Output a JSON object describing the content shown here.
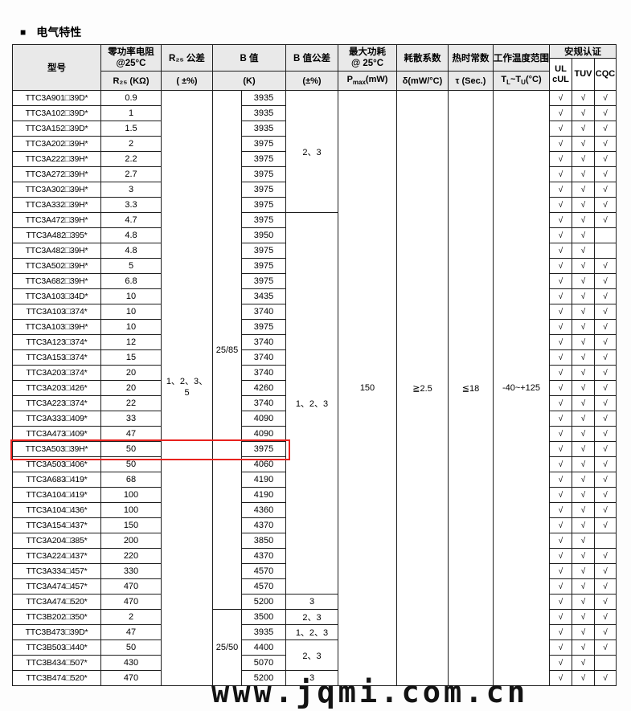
{
  "page": {
    "title_bullet": "■",
    "title": "电气特性",
    "watermark": "www.jqmi.com.cn"
  },
  "colors": {
    "header_bg": "#e9e9e9",
    "border": "#1d1d1d",
    "highlight_red": "#e8211d"
  },
  "table": {
    "header": {
      "model": "型号",
      "zero_power_resistance": "零功率电阻\n@25°C",
      "zero_power_unit": "R₂₅ (KΩ)",
      "r25_tolerance": "R₂₅ 公差",
      "r25_tolerance_unit": "( ±%)",
      "b_value": "B 值",
      "b_value_unit": "(K)",
      "b_tolerance": "B 值公差",
      "b_tolerance_unit": "(±%)",
      "max_power": "最大功耗\n@ 25°C",
      "max_power_unit": {
        "p": "P",
        "sub": "max",
        "rest": "(mW)"
      },
      "dissipation": "耗散系数",
      "dissipation_unit": "δ(mW/°C)",
      "thermal_time": "热时常数",
      "thermal_time_unit": "τ (Sec.)",
      "temp_range": "工作温度范围",
      "temp_range_unit": {
        "t1": "T",
        "sub1": "L",
        "mid": "~T",
        "sub2": "U",
        "rest": "(°C)"
      },
      "certification": "安规认证",
      "cert_cols": [
        "UL\ncUL",
        "TUV",
        "CQC"
      ]
    },
    "check_glyph": "√",
    "shared": {
      "r25_tolerance": "1、2、3、\n5",
      "max_power": "150",
      "dissipation": "≧2.5",
      "thermal_time": "≦18",
      "temp_range": "-40~+125"
    },
    "b_ref_spans": [
      {
        "start": 0,
        "span": 34,
        "label": "25/85"
      },
      {
        "start": 34,
        "span": 5,
        "label": "25/50"
      }
    ],
    "b_tol_spans": [
      {
        "start": 0,
        "span": 8,
        "label": "2、3"
      },
      {
        "start": 8,
        "span": 25,
        "label": "1、2、3"
      },
      {
        "start": 33,
        "span": 1,
        "label": "3"
      },
      {
        "start": 34,
        "span": 1,
        "label": "2、3"
      },
      {
        "start": 35,
        "span": 1,
        "label": "1、2、3"
      },
      {
        "start": 36,
        "span": 2,
        "label": "2、3"
      },
      {
        "start": 38,
        "span": 1,
        "label": "3"
      }
    ],
    "highlighted_row_index": 23,
    "rows": [
      {
        "model": "TTC3A901□39D*",
        "r25": "0.9",
        "b": "3935",
        "certs": [
          1,
          1,
          1
        ]
      },
      {
        "model": "TTC3A102□39D*",
        "r25": "1",
        "b": "3935",
        "certs": [
          1,
          1,
          1
        ]
      },
      {
        "model": "TTC3A152□39D*",
        "r25": "1.5",
        "b": "3935",
        "certs": [
          1,
          1,
          1
        ]
      },
      {
        "model": "TTC3A202□39H*",
        "r25": "2",
        "b": "3975",
        "certs": [
          1,
          1,
          1
        ]
      },
      {
        "model": "TTC3A222□39H*",
        "r25": "2.2",
        "b": "3975",
        "certs": [
          1,
          1,
          1
        ]
      },
      {
        "model": "TTC3A272□39H*",
        "r25": "2.7",
        "b": "3975",
        "certs": [
          1,
          1,
          1
        ]
      },
      {
        "model": "TTC3A302□39H*",
        "r25": "3",
        "b": "3975",
        "certs": [
          1,
          1,
          1
        ]
      },
      {
        "model": "TTC3A332□39H*",
        "r25": "3.3",
        "b": "3975",
        "certs": [
          1,
          1,
          1
        ]
      },
      {
        "model": "TTC3A472□39H*",
        "r25": "4.7",
        "b": "3975",
        "certs": [
          1,
          1,
          1
        ]
      },
      {
        "model": "TTC3A482□395*",
        "r25": "4.8",
        "b": "3950",
        "certs": [
          1,
          1,
          0
        ]
      },
      {
        "model": "TTC3A482□39H*",
        "r25": "4.8",
        "b": "3975",
        "certs": [
          1,
          1,
          0
        ]
      },
      {
        "model": "TTC3A502□39H*",
        "r25": "5",
        "b": "3975",
        "certs": [
          1,
          1,
          1
        ]
      },
      {
        "model": "TTC3A682□39H*",
        "r25": "6.8",
        "b": "3975",
        "certs": [
          1,
          1,
          1
        ]
      },
      {
        "model": "TTC3A103□34D*",
        "r25": "10",
        "b": "3435",
        "certs": [
          1,
          1,
          1
        ]
      },
      {
        "model": "TTC3A103□374*",
        "r25": "10",
        "b": "3740",
        "certs": [
          1,
          1,
          1
        ]
      },
      {
        "model": "TTC3A103□39H*",
        "r25": "10",
        "b": "3975",
        "certs": [
          1,
          1,
          1
        ]
      },
      {
        "model": "TTC3A123□374*",
        "r25": "12",
        "b": "3740",
        "certs": [
          1,
          1,
          1
        ]
      },
      {
        "model": "TTC3A153□374*",
        "r25": "15",
        "b": "3740",
        "certs": [
          1,
          1,
          1
        ]
      },
      {
        "model": "TTC3A203□374*",
        "r25": "20",
        "b": "3740",
        "certs": [
          1,
          1,
          1
        ]
      },
      {
        "model": "TTC3A203□426*",
        "r25": "20",
        "b": "4260",
        "certs": [
          1,
          1,
          1
        ]
      },
      {
        "model": "TTC3A223□374*",
        "r25": "22",
        "b": "3740",
        "certs": [
          1,
          1,
          1
        ]
      },
      {
        "model": "TTC3A333□409*",
        "r25": "33",
        "b": "4090",
        "certs": [
          1,
          1,
          1
        ]
      },
      {
        "model": "TTC3A473□409*",
        "r25": "47",
        "b": "4090",
        "certs": [
          1,
          1,
          1
        ]
      },
      {
        "model": "TTC3A503□39H*",
        "r25": "50",
        "b": "3975",
        "certs": [
          1,
          1,
          1
        ]
      },
      {
        "model": "TTC3A503□406*",
        "r25": "50",
        "b": "4060",
        "certs": [
          1,
          1,
          1
        ]
      },
      {
        "model": "TTC3A683□419*",
        "r25": "68",
        "b": "4190",
        "certs": [
          1,
          1,
          1
        ]
      },
      {
        "model": "TTC3A104□419*",
        "r25": "100",
        "b": "4190",
        "certs": [
          1,
          1,
          1
        ]
      },
      {
        "model": "TTC3A104□436*",
        "r25": "100",
        "b": "4360",
        "certs": [
          1,
          1,
          1
        ]
      },
      {
        "model": "TTC3A154□437*",
        "r25": "150",
        "b": "4370",
        "certs": [
          1,
          1,
          1
        ]
      },
      {
        "model": "TTC3A204□385*",
        "r25": "200",
        "b": "3850",
        "certs": [
          1,
          1,
          0
        ]
      },
      {
        "model": "TTC3A224□437*",
        "r25": "220",
        "b": "4370",
        "certs": [
          1,
          1,
          1
        ]
      },
      {
        "model": "TTC3A334□457*",
        "r25": "330",
        "b": "4570",
        "certs": [
          1,
          1,
          1
        ]
      },
      {
        "model": "TTC3A474□457*",
        "r25": "470",
        "b": "4570",
        "certs": [
          1,
          1,
          1
        ]
      },
      {
        "model": "TTC3A474□520*",
        "r25": "470",
        "b": "5200",
        "certs": [
          1,
          1,
          1
        ]
      },
      {
        "model": "TTC3B202□350*",
        "r25": "2",
        "b": "3500",
        "certs": [
          1,
          1,
          1
        ]
      },
      {
        "model": "TTC3B473□39D*",
        "r25": "47",
        "b": "3935",
        "certs": [
          1,
          1,
          1
        ]
      },
      {
        "model": "TTC3B503□440*",
        "r25": "50",
        "b": "4400",
        "certs": [
          1,
          1,
          1
        ]
      },
      {
        "model": "TTC3B434□507*",
        "r25": "430",
        "b": "5070",
        "certs": [
          1,
          1,
          0
        ]
      },
      {
        "model": "TTC3B474□520*",
        "r25": "470",
        "b": "5200",
        "certs": [
          1,
          1,
          1
        ]
      }
    ]
  }
}
